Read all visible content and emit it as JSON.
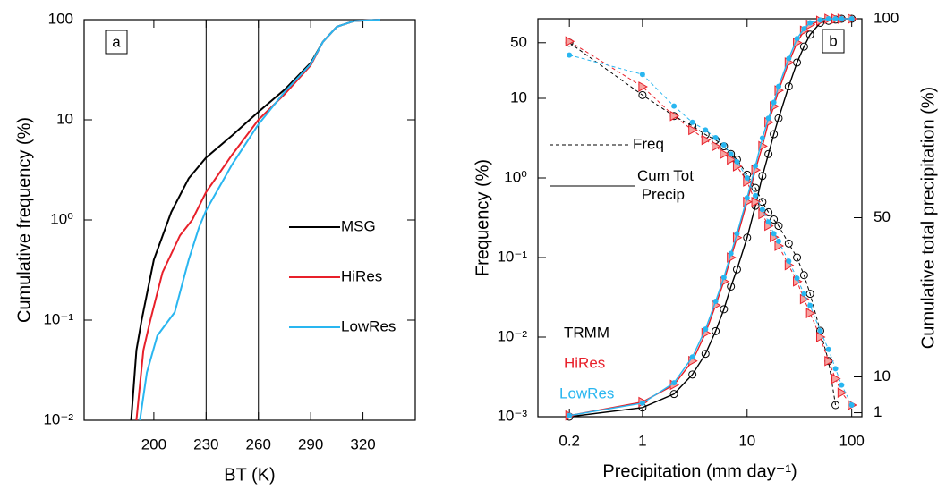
{
  "chart_data": [
    {
      "type": "line",
      "panel_label": "a",
      "xlabel": "BT (K)",
      "ylabel": "Cumulative frequency (%)",
      "xlim": [
        160,
        350
      ],
      "xticks": [
        200,
        230,
        260,
        290,
        320
      ],
      "ylim": [
        0.01,
        100
      ],
      "ylog": true,
      "yticks": [
        100,
        10,
        {
          "value": 1,
          "label": "10⁰"
        },
        {
          "value": 0.1,
          "label": "10⁻¹"
        },
        {
          "value": 0.01,
          "label": "10⁻²"
        }
      ],
      "vlines": [
        230,
        260
      ],
      "series": [
        {
          "name": "MSG",
          "color": "#000000",
          "x": [
            187,
            190,
            193,
            200,
            210,
            220,
            230,
            245,
            260,
            275,
            290,
            297,
            305,
            315,
            330
          ],
          "values": [
            0.01,
            0.05,
            0.1,
            0.4,
            1.2,
            2.6,
            4.2,
            7,
            12,
            20,
            37,
            60,
            85,
            97,
            100
          ]
        },
        {
          "name": "HiRes",
          "color": "#e8202a",
          "x": [
            190,
            194,
            198,
            205,
            215,
            222,
            230,
            245,
            260,
            275,
            290,
            297,
            305,
            315,
            330
          ],
          "values": [
            0.01,
            0.05,
            0.1,
            0.3,
            0.7,
            1.0,
            1.9,
            4.5,
            10,
            18,
            35,
            60,
            85,
            97,
            100
          ]
        },
        {
          "name": "LowRes",
          "color": "#29b6f0",
          "x": [
            192,
            196,
            202,
            212,
            220,
            226,
            230,
            245,
            260,
            275,
            290,
            297,
            305,
            315,
            330
          ],
          "values": [
            0.01,
            0.03,
            0.07,
            0.12,
            0.4,
            0.85,
            1.25,
            3.6,
            9,
            19,
            36,
            60,
            85,
            97,
            100
          ]
        }
      ]
    },
    {
      "type": "line",
      "panel_label": "b",
      "xlabel": "Precipitation (mm day⁻¹)",
      "ylabel": "Frequency (%)",
      "y2label": "Cumulative total precipitation (%)",
      "xlim": [
        0.1,
        125
      ],
      "xlog": true,
      "xticks": [
        0.2,
        1,
        10,
        100
      ],
      "ylim": [
        0.001,
        100
      ],
      "ylog": true,
      "yticks": [
        50,
        10,
        {
          "value": 1,
          "label": "10⁰"
        },
        {
          "value": 0.1,
          "label": "10⁻¹"
        },
        {
          "value": 0.01,
          "label": "10⁻²"
        },
        {
          "value": 0.001,
          "label": "10⁻³"
        }
      ],
      "y2lim": [
        0,
        100
      ],
      "y2ticks": [
        1,
        10,
        50,
        100
      ],
      "legend": [
        {
          "label": "Freq",
          "style": "dashed"
        },
        {
          "label": "Cum Tot Precip",
          "style": "solid"
        }
      ],
      "x": [
        0.2,
        1,
        2,
        3,
        4,
        5,
        6,
        7,
        8,
        10,
        12,
        14,
        16,
        18,
        20,
        25,
        30,
        35,
        40,
        50,
        60,
        70,
        80,
        100
      ],
      "series": [
        {
          "name": "TRMM",
          "color": "#000000",
          "marker": "circle",
          "values": [
            50,
            11,
            6,
            4.5,
            3.5,
            3,
            2.5,
            2,
            1.7,
            1.1,
            0.75,
            0.5,
            0.37,
            0.3,
            0.25,
            0.15,
            0.1,
            0.06,
            0.035,
            0.012,
            0.005,
            0.0014,
            null,
            null
          ],
          "cumulative": [
            0,
            2.3,
            5.7,
            10.6,
            15.8,
            21.5,
            27,
            32.7,
            37,
            45,
            53,
            60.5,
            66,
            71,
            75,
            83,
            89,
            93,
            96,
            99,
            99.5,
            99.8,
            100,
            100
          ]
        },
        {
          "name": "HiRes",
          "color": "#e8202a",
          "marker": "triangle",
          "values": [
            52,
            14,
            6,
            4,
            3,
            2.5,
            2,
            1.7,
            1.4,
            0.9,
            0.5,
            0.35,
            0.25,
            0.18,
            0.14,
            0.08,
            0.05,
            0.03,
            0.02,
            0.01,
            0.005,
            0.003,
            0.002,
            0.0014
          ],
          "cumulative": [
            0.3,
            3.7,
            8,
            14,
            21,
            28,
            34,
            40,
            45,
            54,
            62,
            68,
            74,
            78,
            82,
            89,
            94,
            97,
            98.5,
            99.5,
            100,
            100,
            100,
            100
          ]
        },
        {
          "name": "LowRes",
          "color": "#29b6f0",
          "marker": "dot",
          "values": [
            35,
            20,
            8,
            5,
            4,
            3.2,
            2.6,
            2,
            1.6,
            1,
            0.6,
            0.4,
            0.28,
            0.2,
            0.16,
            0.09,
            0.055,
            0.035,
            0.025,
            0.012,
            0.007,
            0.004,
            0.0025,
            0.0014
          ],
          "cumulative": [
            0.3,
            3.4,
            8.5,
            15,
            22,
            29,
            35,
            41,
            46,
            55,
            63,
            70,
            75,
            79,
            83,
            90,
            95,
            97.5,
            99,
            99.7,
            100,
            100,
            100,
            100
          ]
        }
      ]
    }
  ]
}
